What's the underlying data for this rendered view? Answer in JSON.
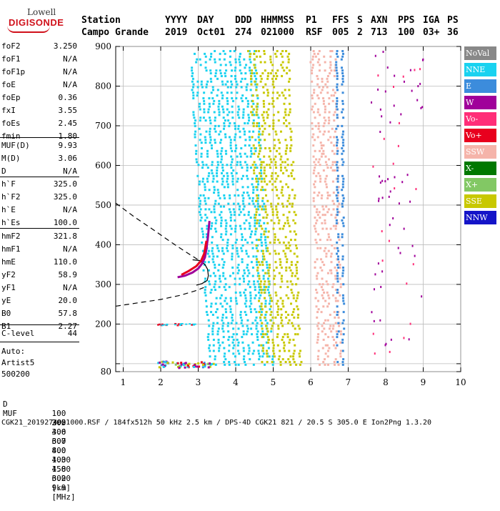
{
  "logo": {
    "line1": "Lowell",
    "line2": "DIGISONDE"
  },
  "header": {
    "labels": [
      "Station",
      "YYYY",
      "DAY",
      "DDD",
      "HHMMSS",
      "P1",
      "FFS",
      "S",
      "AXN",
      "PPS",
      "IGA",
      "PS"
    ],
    "values": [
      "Campo Grande",
      "2019",
      "Oct01",
      "274",
      "021000",
      "RSF",
      "005",
      "2",
      "713",
      "100",
      "03+",
      "36"
    ]
  },
  "params": {
    "group1": [
      {
        "k": "foF2",
        "v": "3.250"
      },
      {
        "k": "foF1",
        "v": "N/A"
      },
      {
        "k": "foF1p",
        "v": "N/A"
      },
      {
        "k": "foE",
        "v": "N/A"
      },
      {
        "k": "foEp",
        "v": "0.36"
      },
      {
        "k": "fxI",
        "v": "3.55"
      },
      {
        "k": "foEs",
        "v": "2.45"
      },
      {
        "k": "fmin",
        "v": "1.80"
      }
    ],
    "group2": [
      {
        "k": "MUF(D)",
        "v": "9.93"
      },
      {
        "k": "M(D)",
        "v": "3.06"
      },
      {
        "k": "D",
        "v": "N/A"
      }
    ],
    "group3": [
      {
        "k": "h`F",
        "v": "325.0"
      },
      {
        "k": "h`F2",
        "v": "325.0"
      },
      {
        "k": "h`E",
        "v": "N/A"
      },
      {
        "k": "h`Es",
        "v": "100.0"
      }
    ],
    "group4": [
      {
        "k": "hmF2",
        "v": "321.8"
      },
      {
        "k": "hmF1",
        "v": "N/A"
      },
      {
        "k": "hmE",
        "v": "110.0"
      },
      {
        "k": "yF2",
        "v": "58.9"
      },
      {
        "k": "yF1",
        "v": "N/A"
      },
      {
        "k": "yE",
        "v": "20.0"
      },
      {
        "k": "B0",
        "v": "57.8"
      },
      {
        "k": "B1",
        "v": "2.27"
      }
    ],
    "clevel": {
      "k": "C-level",
      "v": "44"
    },
    "auto": [
      "Auto:",
      "Artist5",
      "500200"
    ]
  },
  "legend": [
    {
      "label": "NoVal",
      "color": "#888888"
    },
    {
      "label": "NNE",
      "color": "#19d2f0"
    },
    {
      "label": "E",
      "color": "#3c8cdc"
    },
    {
      "label": "W",
      "color": "#a0009a"
    },
    {
      "label": "Vo-",
      "color": "#ff2e78"
    },
    {
      "label": "Vo+",
      "color": "#e8001e"
    },
    {
      "label": "SSW",
      "color": "#f5b4aa"
    },
    {
      "label": "X-",
      "color": "#007800"
    },
    {
      "label": "X+",
      "color": "#82c864"
    },
    {
      "label": "SSE",
      "color": "#c8c800"
    },
    {
      "label": "NNW",
      "color": "#1414c8"
    }
  ],
  "footer": {
    "d_label": "D",
    "d_values": [
      "100",
      "200",
      "400",
      "600",
      "800",
      "1000",
      "1500",
      "3000",
      "[km]"
    ],
    "muf_label": "MUF",
    "muf_values": [
      "3.5",
      "3.6",
      "3.7",
      "4.0",
      "4.3",
      "4.8",
      "6.2",
      "9.9",
      "[MHz]"
    ],
    "info": "CGK21_2019274021000.RSF / 184fx512h 50 kHz 2.5 km / DPS-4D CGK21 821 / 20.5 S 305.0 E Ion2Png 1.3.20"
  },
  "chart_data": {
    "type": "scatter",
    "title": "",
    "xlabel": "",
    "ylabel": "",
    "xlim": [
      0.8,
      10
    ],
    "ylim": [
      80,
      900
    ],
    "xticks": [
      1,
      2,
      3,
      4,
      5,
      6,
      7,
      8,
      9,
      10
    ],
    "yticks": [
      80,
      100,
      200,
      300,
      400,
      500,
      600,
      700,
      800,
      900
    ],
    "ytick_labels": [
      "80",
      "",
      "200",
      "300",
      "400",
      "500",
      "600",
      "700",
      "800",
      "900"
    ],
    "grid": true,
    "series": [
      {
        "name": "",
        "kind": "dashed",
        "points": [
          [
            0.8,
            505
          ],
          [
            1.3,
            470
          ],
          [
            1.8,
            438
          ],
          [
            2.3,
            405
          ],
          [
            2.7,
            380
          ],
          [
            3.0,
            362
          ],
          [
            3.15,
            352
          ]
        ]
      },
      {
        "name": "",
        "kind": "dashed",
        "points": [
          [
            0.8,
            245
          ],
          [
            1.5,
            255
          ],
          [
            2.0,
            262
          ],
          [
            2.5,
            272
          ],
          [
            2.9,
            283
          ],
          [
            3.15,
            292
          ]
        ]
      },
      {
        "name": "",
        "kind": "solid",
        "points": [
          [
            2.85,
            362
          ],
          [
            3.05,
            360
          ],
          [
            3.18,
            350
          ],
          [
            3.25,
            338
          ],
          [
            3.27,
            322
          ],
          [
            3.24,
            310
          ],
          [
            3.1,
            302
          ],
          [
            2.95,
            298
          ]
        ]
      },
      {
        "name": "",
        "kind": "trace",
        "color": "#a0009a",
        "points": [
          [
            2.45,
            318
          ],
          [
            2.65,
            322
          ],
          [
            2.85,
            330
          ],
          [
            3.0,
            340
          ],
          [
            3.1,
            352
          ],
          [
            3.18,
            368
          ],
          [
            3.22,
            390
          ],
          [
            3.26,
            420
          ],
          [
            3.3,
            460
          ]
        ]
      },
      {
        "name": "",
        "kind": "trace",
        "color": "#e8001e",
        "points": [
          [
            2.55,
            324
          ],
          [
            2.75,
            334
          ],
          [
            2.95,
            346
          ],
          [
            3.08,
            360
          ],
          [
            3.16,
            378
          ],
          [
            3.22,
            410
          ]
        ]
      }
    ]
  }
}
